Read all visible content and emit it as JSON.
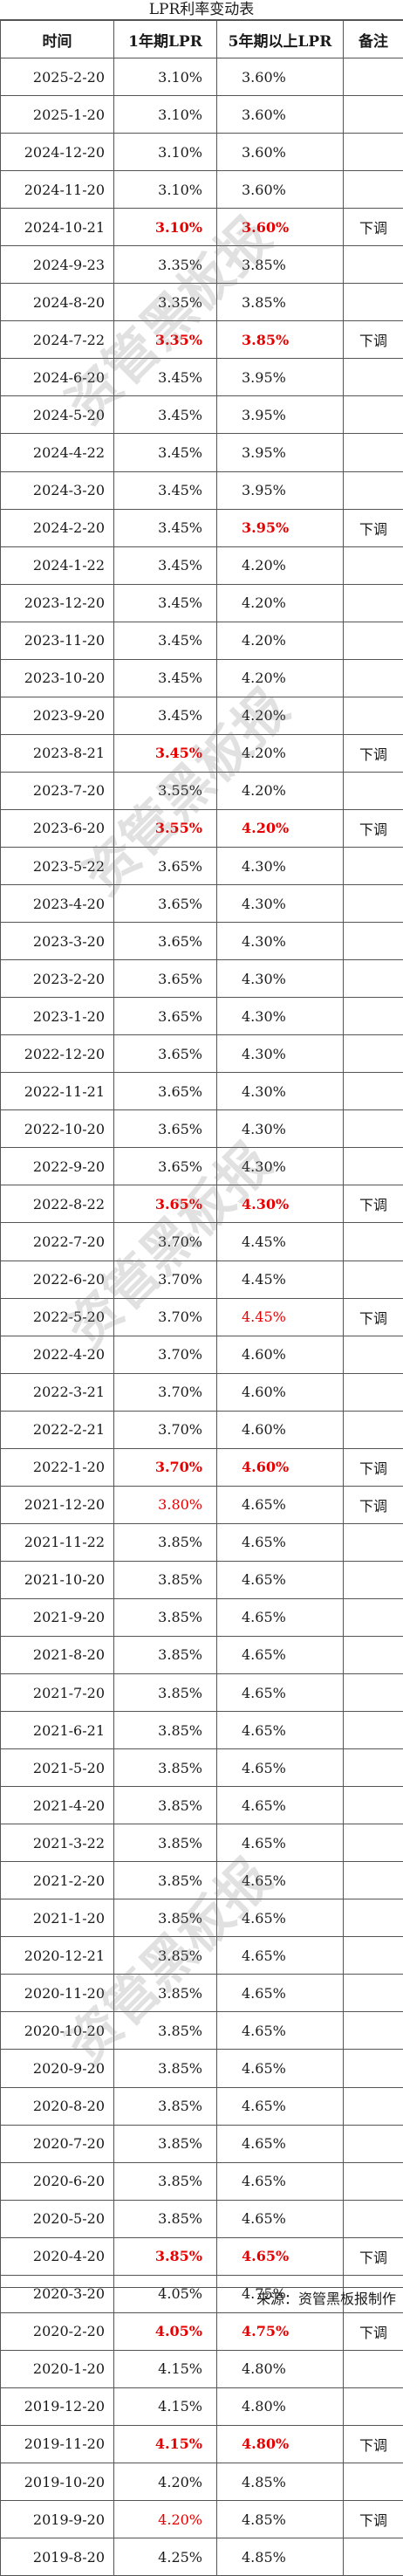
{
  "title": "LPR利率变动表",
  "headers": {
    "date": "时间",
    "lpr1": "1年期LPR",
    "lpr5": "5年期以上LPR",
    "note": "备注"
  },
  "rows": [
    {
      "date": "2025-2-20",
      "lpr1": "3.10%",
      "lpr5": "3.60%",
      "note": "",
      "s1": "",
      "s5": ""
    },
    {
      "date": "2025-1-20",
      "lpr1": "3.10%",
      "lpr5": "3.60%",
      "note": "",
      "s1": "",
      "s5": ""
    },
    {
      "date": "2024-12-20",
      "lpr1": "3.10%",
      "lpr5": "3.60%",
      "note": "",
      "s1": "",
      "s5": ""
    },
    {
      "date": "2024-11-20",
      "lpr1": "3.10%",
      "lpr5": "3.60%",
      "note": "",
      "s1": "",
      "s5": ""
    },
    {
      "date": "2024-10-21",
      "lpr1": "3.10%",
      "lpr5": "3.60%",
      "note": "下调",
      "s1": "red",
      "s5": "red"
    },
    {
      "date": "2024-9-23",
      "lpr1": "3.35%",
      "lpr5": "3.85%",
      "note": "",
      "s1": "",
      "s5": ""
    },
    {
      "date": "2024-8-20",
      "lpr1": "3.35%",
      "lpr5": "3.85%",
      "note": "",
      "s1": "",
      "s5": ""
    },
    {
      "date": "2024-7-22",
      "lpr1": "3.35%",
      "lpr5": "3.85%",
      "note": "下调",
      "s1": "red",
      "s5": "red"
    },
    {
      "date": "2024-6-20",
      "lpr1": "3.45%",
      "lpr5": "3.95%",
      "note": "",
      "s1": "",
      "s5": ""
    },
    {
      "date": "2024-5-20",
      "lpr1": "3.45%",
      "lpr5": "3.95%",
      "note": "",
      "s1": "",
      "s5": ""
    },
    {
      "date": "2024-4-22",
      "lpr1": "3.45%",
      "lpr5": "3.95%",
      "note": "",
      "s1": "",
      "s5": ""
    },
    {
      "date": "2024-3-20",
      "lpr1": "3.45%",
      "lpr5": "3.95%",
      "note": "",
      "s1": "",
      "s5": ""
    },
    {
      "date": "2024-2-20",
      "lpr1": "3.45%",
      "lpr5": "3.95%",
      "note": "下调",
      "s1": "",
      "s5": "red"
    },
    {
      "date": "2024-1-22",
      "lpr1": "3.45%",
      "lpr5": "4.20%",
      "note": "",
      "s1": "",
      "s5": ""
    },
    {
      "date": "2023-12-20",
      "lpr1": "3.45%",
      "lpr5": "4.20%",
      "note": "",
      "s1": "",
      "s5": ""
    },
    {
      "date": "2023-11-20",
      "lpr1": "3.45%",
      "lpr5": "4.20%",
      "note": "",
      "s1": "",
      "s5": ""
    },
    {
      "date": "2023-10-20",
      "lpr1": "3.45%",
      "lpr5": "4.20%",
      "note": "",
      "s1": "",
      "s5": ""
    },
    {
      "date": "2023-9-20",
      "lpr1": "3.45%",
      "lpr5": "4.20%",
      "note": "",
      "s1": "",
      "s5": ""
    },
    {
      "date": "2023-8-21",
      "lpr1": "3.45%",
      "lpr5": "4.20%",
      "note": "下调",
      "s1": "red",
      "s5": ""
    },
    {
      "date": "2023-7-20",
      "lpr1": "3.55%",
      "lpr5": "4.20%",
      "note": "",
      "s1": "",
      "s5": ""
    },
    {
      "date": "2023-6-20",
      "lpr1": "3.55%",
      "lpr5": "4.20%",
      "note": "下调",
      "s1": "red",
      "s5": "red"
    },
    {
      "date": "2023-5-22",
      "lpr1": "3.65%",
      "lpr5": "4.30%",
      "note": "",
      "s1": "",
      "s5": ""
    },
    {
      "date": "2023-4-20",
      "lpr1": "3.65%",
      "lpr5": "4.30%",
      "note": "",
      "s1": "",
      "s5": ""
    },
    {
      "date": "2023-3-20",
      "lpr1": "3.65%",
      "lpr5": "4.30%",
      "note": "",
      "s1": "",
      "s5": ""
    },
    {
      "date": "2023-2-20",
      "lpr1": "3.65%",
      "lpr5": "4.30%",
      "note": "",
      "s1": "",
      "s5": ""
    },
    {
      "date": "2023-1-20",
      "lpr1": "3.65%",
      "lpr5": "4.30%",
      "note": "",
      "s1": "",
      "s5": ""
    },
    {
      "date": "2022-12-20",
      "lpr1": "3.65%",
      "lpr5": "4.30%",
      "note": "",
      "s1": "",
      "s5": ""
    },
    {
      "date": "2022-11-21",
      "lpr1": "3.65%",
      "lpr5": "4.30%",
      "note": "",
      "s1": "",
      "s5": ""
    },
    {
      "date": "2022-10-20",
      "lpr1": "3.65%",
      "lpr5": "4.30%",
      "note": "",
      "s1": "",
      "s5": ""
    },
    {
      "date": "2022-9-20",
      "lpr1": "3.65%",
      "lpr5": "4.30%",
      "note": "",
      "s1": "",
      "s5": ""
    },
    {
      "date": "2022-8-22",
      "lpr1": "3.65%",
      "lpr5": "4.30%",
      "note": "下调",
      "s1": "red",
      "s5": "red"
    },
    {
      "date": "2022-7-20",
      "lpr1": "3.70%",
      "lpr5": "4.45%",
      "note": "",
      "s1": "",
      "s5": ""
    },
    {
      "date": "2022-6-20",
      "lpr1": "3.70%",
      "lpr5": "4.45%",
      "note": "",
      "s1": "",
      "s5": ""
    },
    {
      "date": "2022-5-20",
      "lpr1": "3.70%",
      "lpr5": "4.45%",
      "note": "下调",
      "s1": "",
      "s5": "redthin"
    },
    {
      "date": "2022-4-20",
      "lpr1": "3.70%",
      "lpr5": "4.60%",
      "note": "",
      "s1": "",
      "s5": ""
    },
    {
      "date": "2022-3-21",
      "lpr1": "3.70%",
      "lpr5": "4.60%",
      "note": "",
      "s1": "",
      "s5": ""
    },
    {
      "date": "2022-2-21",
      "lpr1": "3.70%",
      "lpr5": "4.60%",
      "note": "",
      "s1": "",
      "s5": ""
    },
    {
      "date": "2022-1-20",
      "lpr1": "3.70%",
      "lpr5": "4.60%",
      "note": "下调",
      "s1": "red",
      "s5": "red"
    },
    {
      "date": "2021-12-20",
      "lpr1": "3.80%",
      "lpr5": "4.65%",
      "note": "下调",
      "s1": "redthin",
      "s5": ""
    },
    {
      "date": "2021-11-22",
      "lpr1": "3.85%",
      "lpr5": "4.65%",
      "note": "",
      "s1": "",
      "s5": ""
    },
    {
      "date": "2021-10-20",
      "lpr1": "3.85%",
      "lpr5": "4.65%",
      "note": "",
      "s1": "",
      "s5": ""
    },
    {
      "date": "2021-9-20",
      "lpr1": "3.85%",
      "lpr5": "4.65%",
      "note": "",
      "s1": "",
      "s5": ""
    },
    {
      "date": "2021-8-20",
      "lpr1": "3.85%",
      "lpr5": "4.65%",
      "note": "",
      "s1": "",
      "s5": ""
    },
    {
      "date": "2021-7-20",
      "lpr1": "3.85%",
      "lpr5": "4.65%",
      "note": "",
      "s1": "",
      "s5": ""
    },
    {
      "date": "2021-6-21",
      "lpr1": "3.85%",
      "lpr5": "4.65%",
      "note": "",
      "s1": "",
      "s5": ""
    },
    {
      "date": "2021-5-20",
      "lpr1": "3.85%",
      "lpr5": "4.65%",
      "note": "",
      "s1": "",
      "s5": ""
    },
    {
      "date": "2021-4-20",
      "lpr1": "3.85%",
      "lpr5": "4.65%",
      "note": "",
      "s1": "",
      "s5": ""
    },
    {
      "date": "2021-3-22",
      "lpr1": "3.85%",
      "lpr5": "4.65%",
      "note": "",
      "s1": "",
      "s5": ""
    },
    {
      "date": "2021-2-20",
      "lpr1": "3.85%",
      "lpr5": "4.65%",
      "note": "",
      "s1": "",
      "s5": ""
    },
    {
      "date": "2021-1-20",
      "lpr1": "3.85%",
      "lpr5": "4.65%",
      "note": "",
      "s1": "",
      "s5": ""
    },
    {
      "date": "2020-12-21",
      "lpr1": "3.85%",
      "lpr5": "4.65%",
      "note": "",
      "s1": "",
      "s5": ""
    },
    {
      "date": "2020-11-20",
      "lpr1": "3.85%",
      "lpr5": "4.65%",
      "note": "",
      "s1": "",
      "s5": ""
    },
    {
      "date": "2020-10-20",
      "lpr1": "3.85%",
      "lpr5": "4.65%",
      "note": "",
      "s1": "",
      "s5": ""
    },
    {
      "date": "2020-9-20",
      "lpr1": "3.85%",
      "lpr5": "4.65%",
      "note": "",
      "s1": "",
      "s5": ""
    },
    {
      "date": "2020-8-20",
      "lpr1": "3.85%",
      "lpr5": "4.65%",
      "note": "",
      "s1": "",
      "s5": ""
    },
    {
      "date": "2020-7-20",
      "lpr1": "3.85%",
      "lpr5": "4.65%",
      "note": "",
      "s1": "",
      "s5": ""
    },
    {
      "date": "2020-6-20",
      "lpr1": "3.85%",
      "lpr5": "4.65%",
      "note": "",
      "s1": "",
      "s5": ""
    },
    {
      "date": "2020-5-20",
      "lpr1": "3.85%",
      "lpr5": "4.65%",
      "note": "",
      "s1": "",
      "s5": ""
    },
    {
      "date": "2020-4-20",
      "lpr1": "3.85%",
      "lpr5": "4.65%",
      "note": "下调",
      "s1": "red",
      "s5": "red"
    },
    {
      "date": "2020-3-20",
      "lpr1": "4.05%",
      "lpr5": "4.75%",
      "note": "",
      "s1": "",
      "s5": ""
    },
    {
      "date": "2020-2-20",
      "lpr1": "4.05%",
      "lpr5": "4.75%",
      "note": "下调",
      "s1": "red",
      "s5": "red"
    },
    {
      "date": "2020-1-20",
      "lpr1": "4.15%",
      "lpr5": "4.80%",
      "note": "",
      "s1": "",
      "s5": ""
    },
    {
      "date": "2019-12-20",
      "lpr1": "4.15%",
      "lpr5": "4.80%",
      "note": "",
      "s1": "",
      "s5": ""
    },
    {
      "date": "2019-11-20",
      "lpr1": "4.15%",
      "lpr5": "4.80%",
      "note": "下调",
      "s1": "red",
      "s5": "red"
    },
    {
      "date": "2019-10-20",
      "lpr1": "4.20%",
      "lpr5": "4.85%",
      "note": "",
      "s1": "",
      "s5": ""
    },
    {
      "date": "2019-9-20",
      "lpr1": "4.20%",
      "lpr5": "4.85%",
      "note": "下调",
      "s1": "redthin",
      "s5": ""
    },
    {
      "date": "2019-8-20",
      "lpr1": "4.25%",
      "lpr5": "4.85%",
      "note": "",
      "s1": "",
      "s5": ""
    }
  ],
  "footer": "来源：资管黑板报制作",
  "watermark": "资管黑板报",
  "colors": {
    "highlight": "#e60000",
    "border": "#555555"
  }
}
